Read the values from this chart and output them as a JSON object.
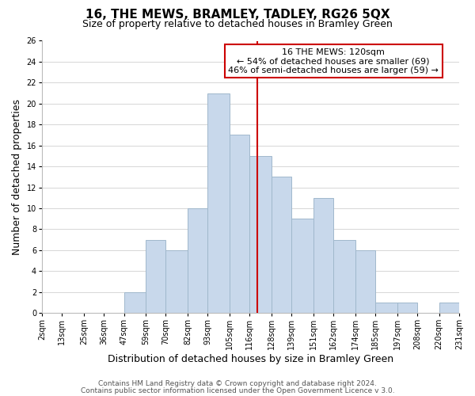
{
  "title": "16, THE MEWS, BRAMLEY, TADLEY, RG26 5QX",
  "subtitle": "Size of property relative to detached houses in Bramley Green",
  "xlabel": "Distribution of detached houses by size in Bramley Green",
  "ylabel": "Number of detached properties",
  "bin_edges": [
    2,
    13,
    25,
    36,
    47,
    59,
    70,
    82,
    93,
    105,
    116,
    128,
    139,
    151,
    162,
    174,
    185,
    197,
    208,
    220,
    231
  ],
  "counts": [
    0,
    0,
    0,
    0,
    2,
    7,
    6,
    10,
    21,
    17,
    15,
    13,
    9,
    11,
    7,
    6,
    1,
    1,
    0,
    1
  ],
  "bar_color": "#c8d8eb",
  "bar_edgecolor": "#a0b8cc",
  "vline_x": 120,
  "vline_color": "#cc0000",
  "annotation_text": "16 THE MEWS: 120sqm\n← 54% of detached houses are smaller (69)\n46% of semi-detached houses are larger (59) →",
  "annotation_box_edgecolor": "#cc0000",
  "annotation_box_facecolor": "#ffffff",
  "ylim": [
    0,
    26
  ],
  "yticks": [
    0,
    2,
    4,
    6,
    8,
    10,
    12,
    14,
    16,
    18,
    20,
    22,
    24,
    26
  ],
  "tick_labels": [
    "2sqm",
    "13sqm",
    "25sqm",
    "36sqm",
    "47sqm",
    "59sqm",
    "70sqm",
    "82sqm",
    "93sqm",
    "105sqm",
    "116sqm",
    "128sqm",
    "139sqm",
    "151sqm",
    "162sqm",
    "174sqm",
    "185sqm",
    "197sqm",
    "208sqm",
    "220sqm",
    "231sqm"
  ],
  "footer1": "Contains HM Land Registry data © Crown copyright and database right 2024.",
  "footer2": "Contains public sector information licensed under the Open Government Licence v 3.0.",
  "title_fontsize": 11,
  "subtitle_fontsize": 9,
  "axis_label_fontsize": 9,
  "tick_fontsize": 7,
  "annotation_fontsize": 8,
  "footer_fontsize": 6.5
}
